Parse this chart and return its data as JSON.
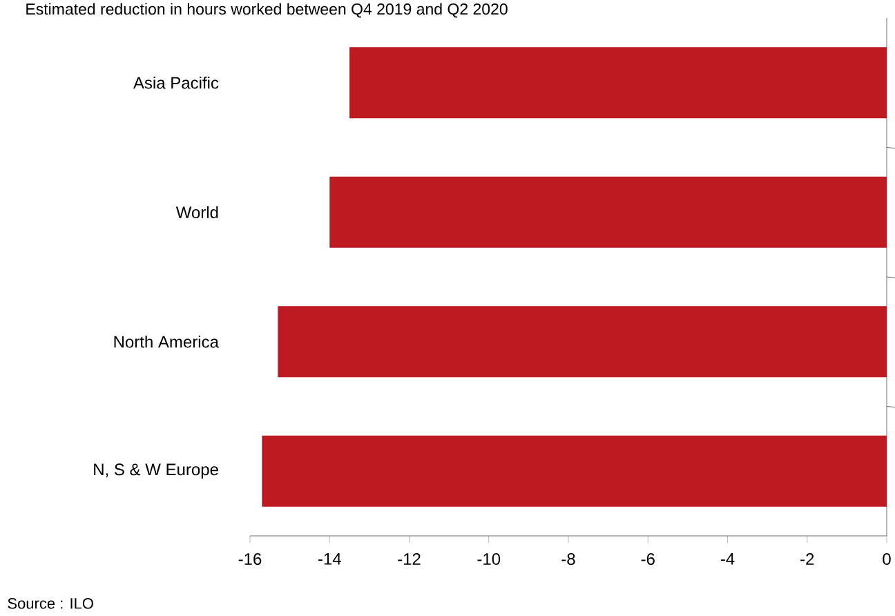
{
  "chart_data": {
    "type": "bar",
    "orientation": "horizontal",
    "title": "Estimated reduction in hours worked between Q4 2019 and Q2 2020",
    "categories": [
      "Asia Pacific",
      "World",
      "North America",
      "N, S & W Europe"
    ],
    "values": [
      -13.5,
      -14.0,
      -15.3,
      -15.7
    ],
    "color": "#be1a22",
    "xlim": [
      -16,
      0
    ],
    "xticks": [
      -16,
      -14,
      -12,
      -10,
      -8,
      -6,
      -4,
      -2,
      0
    ],
    "annotations": [
      "Source : ILO"
    ]
  }
}
